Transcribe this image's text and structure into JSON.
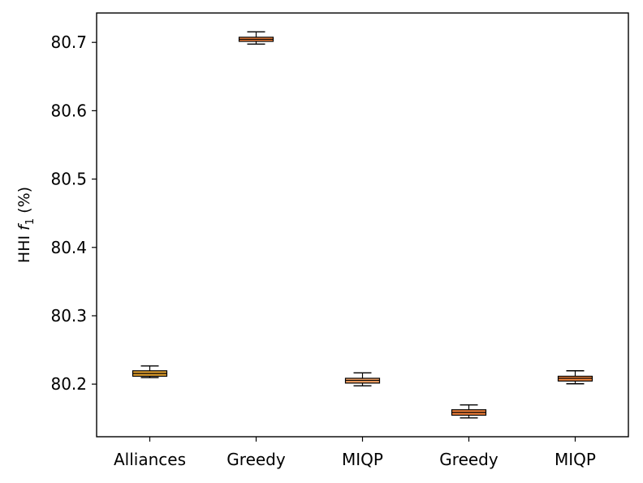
{
  "chart_data": {
    "type": "box",
    "ylabel": "HHI f1 (%)",
    "ylabel_parts": {
      "main": "HHI ",
      "var": "f",
      "sub": "1",
      "unit": " (%)"
    },
    "categories": [
      "Alliances",
      "Greedy",
      "MIQP",
      "Greedy",
      "MIQP"
    ],
    "yticks": [
      80.2,
      80.3,
      80.4,
      80.5,
      80.6,
      80.7
    ],
    "ytick_labels": [
      "80.2",
      "80.3",
      "80.4",
      "80.5",
      "80.6",
      "80.7"
    ],
    "ylim": [
      80.123,
      80.743
    ],
    "grid": false,
    "boxes": [
      {
        "category": "Alliances",
        "whisker_low": 80.2095,
        "q1": 80.2115,
        "median": 80.2155,
        "q3": 80.2195,
        "whisker_high": 80.2265,
        "color": "#e2a12f"
      },
      {
        "category": "Greedy",
        "whisker_low": 80.6975,
        "q1": 80.7015,
        "median": 80.7045,
        "q3": 80.7075,
        "whisker_high": 80.7155,
        "color": "#f4823c"
      },
      {
        "category": "MIQP",
        "whisker_low": 80.1975,
        "q1": 80.2015,
        "median": 80.2055,
        "q3": 80.2085,
        "whisker_high": 80.2165,
        "color": "#f3a063"
      },
      {
        "category": "Greedy",
        "whisker_low": 80.1505,
        "q1": 80.1545,
        "median": 80.1585,
        "q3": 80.1625,
        "whisker_high": 80.1695,
        "color": "#f4823c"
      },
      {
        "category": "MIQP",
        "whisker_low": 80.2005,
        "q1": 80.2045,
        "median": 80.2085,
        "q3": 80.2115,
        "whisker_high": 80.2195,
        "color": "#f5883f"
      }
    ]
  }
}
